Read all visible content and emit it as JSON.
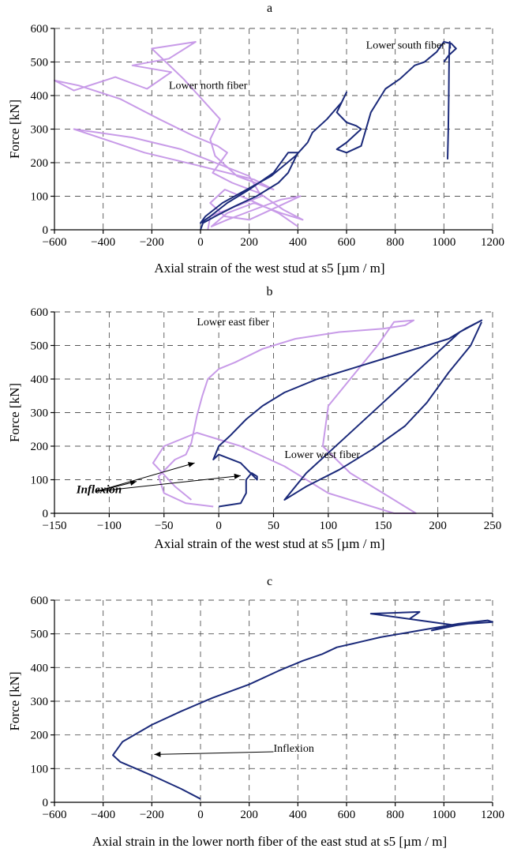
{
  "chart_data": [
    {
      "type": "line",
      "title": "a",
      "xlabel": "Axial strain of the west stud at s5 [µm / m]",
      "ylabel": "Force [kN]",
      "xlim": [
        -600,
        1200
      ],
      "ylim": [
        0,
        600
      ],
      "xticks": [
        -600,
        -400,
        -200,
        0,
        200,
        400,
        600,
        800,
        1000,
        1200
      ],
      "yticks": [
        0,
        100,
        200,
        300,
        400,
        500,
        600
      ],
      "grid": true,
      "colors": {
        "light": "#c89be8",
        "dark": "#1b2a7a"
      },
      "annotations": [
        {
          "text": "Lower north fiber",
          "x": -130,
          "y": 420
        },
        {
          "text": "Lower south fiber",
          "x": 680,
          "y": 540
        }
      ],
      "series": [
        {
          "color": "light",
          "x": [
            400,
            320,
            200,
            100,
            40,
            100,
            200,
            320,
            410,
            330,
            220,
            110,
            45,
            110,
            220,
            330,
            420,
            340,
            240,
            130,
            50,
            80,
            110,
            70,
            -30,
            -170,
            -330,
            -500,
            -600,
            -520,
            -350,
            -220,
            -120,
            -280,
            -130,
            -20,
            -200,
            -70,
            80,
            40,
            60,
            150,
            300,
            220,
            0,
            -230,
            -520,
            -280,
            -80,
            200,
            250,
            40,
            30
          ],
          "y": [
            10,
            50,
            90,
            120,
            80,
            40,
            30,
            70,
            100,
            90,
            60,
            30,
            10,
            50,
            80,
            50,
            30,
            60,
            110,
            140,
            170,
            200,
            230,
            250,
            280,
            330,
            390,
            430,
            445,
            415,
            455,
            420,
            470,
            490,
            510,
            560,
            540,
            450,
            330,
            270,
            220,
            160,
            120,
            150,
            190,
            230,
            300,
            275,
            240,
            160,
            100,
            40,
            0
          ]
        },
        {
          "color": "dark",
          "x": [
            0,
            10,
            60,
            140,
            230,
            320,
            360,
            400,
            360,
            300,
            200,
            110,
            40,
            0,
            20,
            90,
            190,
            290,
            390,
            440,
            460,
            520,
            580,
            600,
            560,
            600,
            640,
            660,
            600,
            560,
            600,
            660,
            700,
            760,
            820,
            880,
            920,
            970,
            1000,
            1030,
            1050,
            1020,
            1000
          ],
          "y": [
            0,
            20,
            40,
            70,
            100,
            140,
            170,
            230,
            230,
            170,
            120,
            80,
            40,
            20,
            40,
            80,
            120,
            160,
            220,
            260,
            290,
            330,
            380,
            410,
            350,
            320,
            310,
            300,
            260,
            240,
            230,
            250,
            350,
            420,
            450,
            490,
            500,
            530,
            560,
            555,
            540,
            520,
            500
          ]
        },
        {
          "color": "dark",
          "x": [
            1015,
            1018,
            1020,
            1021,
            1022,
            1024,
            1026
          ],
          "y": [
            210,
            300,
            400,
            480,
            530,
            560,
            540
          ]
        }
      ]
    },
    {
      "type": "line",
      "title": "b",
      "xlabel": "Axial strain of the west stud at s5 [µm / m]",
      "ylabel": "Force [kN]",
      "xlim": [
        -150,
        250
      ],
      "ylim": [
        0,
        600
      ],
      "xticks": [
        -150,
        -100,
        -50,
        0,
        50,
        100,
        150,
        200,
        250
      ],
      "yticks": [
        0,
        100,
        200,
        300,
        400,
        500,
        600
      ],
      "grid": true,
      "colors": {
        "light": "#c89be8",
        "dark": "#1b2a7a"
      },
      "annotations": [
        {
          "text": "Lower east fiber",
          "x": -20,
          "y": 560
        },
        {
          "text": "Lower west fiber",
          "x": 60,
          "y": 165
        },
        {
          "text": "Inflexion",
          "x": -130,
          "y": 60
        }
      ],
      "series": [
        {
          "color": "light",
          "x": [
            -5,
            -30,
            -50,
            -55,
            -40,
            -30,
            -25,
            -20,
            -15,
            -10,
            0,
            15,
            40,
            70,
            110,
            150,
            170,
            178,
            160,
            145,
            125,
            100,
            95,
            120,
            150,
            180,
            160,
            100,
            60,
            20,
            -20,
            -50,
            -60,
            -40,
            -25
          ],
          "y": [
            20,
            30,
            60,
            110,
            160,
            175,
            210,
            290,
            350,
            400,
            430,
            450,
            490,
            520,
            540,
            550,
            560,
            575,
            570,
            500,
            420,
            320,
            200,
            120,
            60,
            0,
            0,
            60,
            140,
            200,
            240,
            200,
            150,
            80,
            40
          ]
        },
        {
          "color": "dark",
          "x": [
            0,
            20,
            25,
            25,
            30,
            35,
            35,
            20,
            0,
            -5,
            0,
            10,
            25,
            40,
            60,
            90,
            120,
            150,
            170,
            190,
            210,
            225,
            240,
            220,
            190,
            150,
            110,
            80,
            60,
            80,
            110,
            140,
            170,
            190,
            210,
            230,
            240
          ],
          "y": [
            20,
            30,
            60,
            100,
            120,
            110,
            100,
            150,
            175,
            160,
            200,
            230,
            280,
            320,
            360,
            400,
            430,
            460,
            480,
            500,
            520,
            550,
            575,
            540,
            450,
            330,
            210,
            120,
            40,
            80,
            130,
            190,
            260,
            330,
            420,
            500,
            570
          ]
        }
      ]
    },
    {
      "type": "line",
      "title": "c",
      "xlabel": "Axial strain in the lower north fiber of the east stud at s5 [µm / m]",
      "ylabel": "Force [kN]",
      "xlim": [
        -600,
        1200
      ],
      "ylim": [
        0,
        600
      ],
      "xticks": [
        -600,
        -400,
        -200,
        0,
        200,
        400,
        600,
        800,
        1000,
        1200
      ],
      "yticks": [
        0,
        100,
        200,
        300,
        400,
        500,
        600
      ],
      "grid": true,
      "colors": {
        "dark": "#1b2a7a"
      },
      "annotations": [
        {
          "text": "Inflexion",
          "x": 300,
          "y": 150
        }
      ],
      "series": [
        {
          "color": "dark",
          "x": [
            0,
            -80,
            -200,
            -330,
            -360,
            -320,
            -200,
            -80,
            50,
            200,
            320,
            420,
            500,
            560,
            620,
            680,
            740,
            820,
            900,
            980,
            1060,
            1120,
            1180,
            1200,
            1100,
            1000,
            950,
            1050,
            900,
            700,
            900,
            860
          ],
          "y": [
            10,
            40,
            80,
            120,
            140,
            180,
            230,
            270,
            310,
            350,
            390,
            420,
            440,
            460,
            470,
            480,
            490,
            500,
            510,
            520,
            530,
            535,
            540,
            535,
            530,
            520,
            510,
            525,
            540,
            560,
            565,
            545
          ]
        }
      ]
    }
  ]
}
